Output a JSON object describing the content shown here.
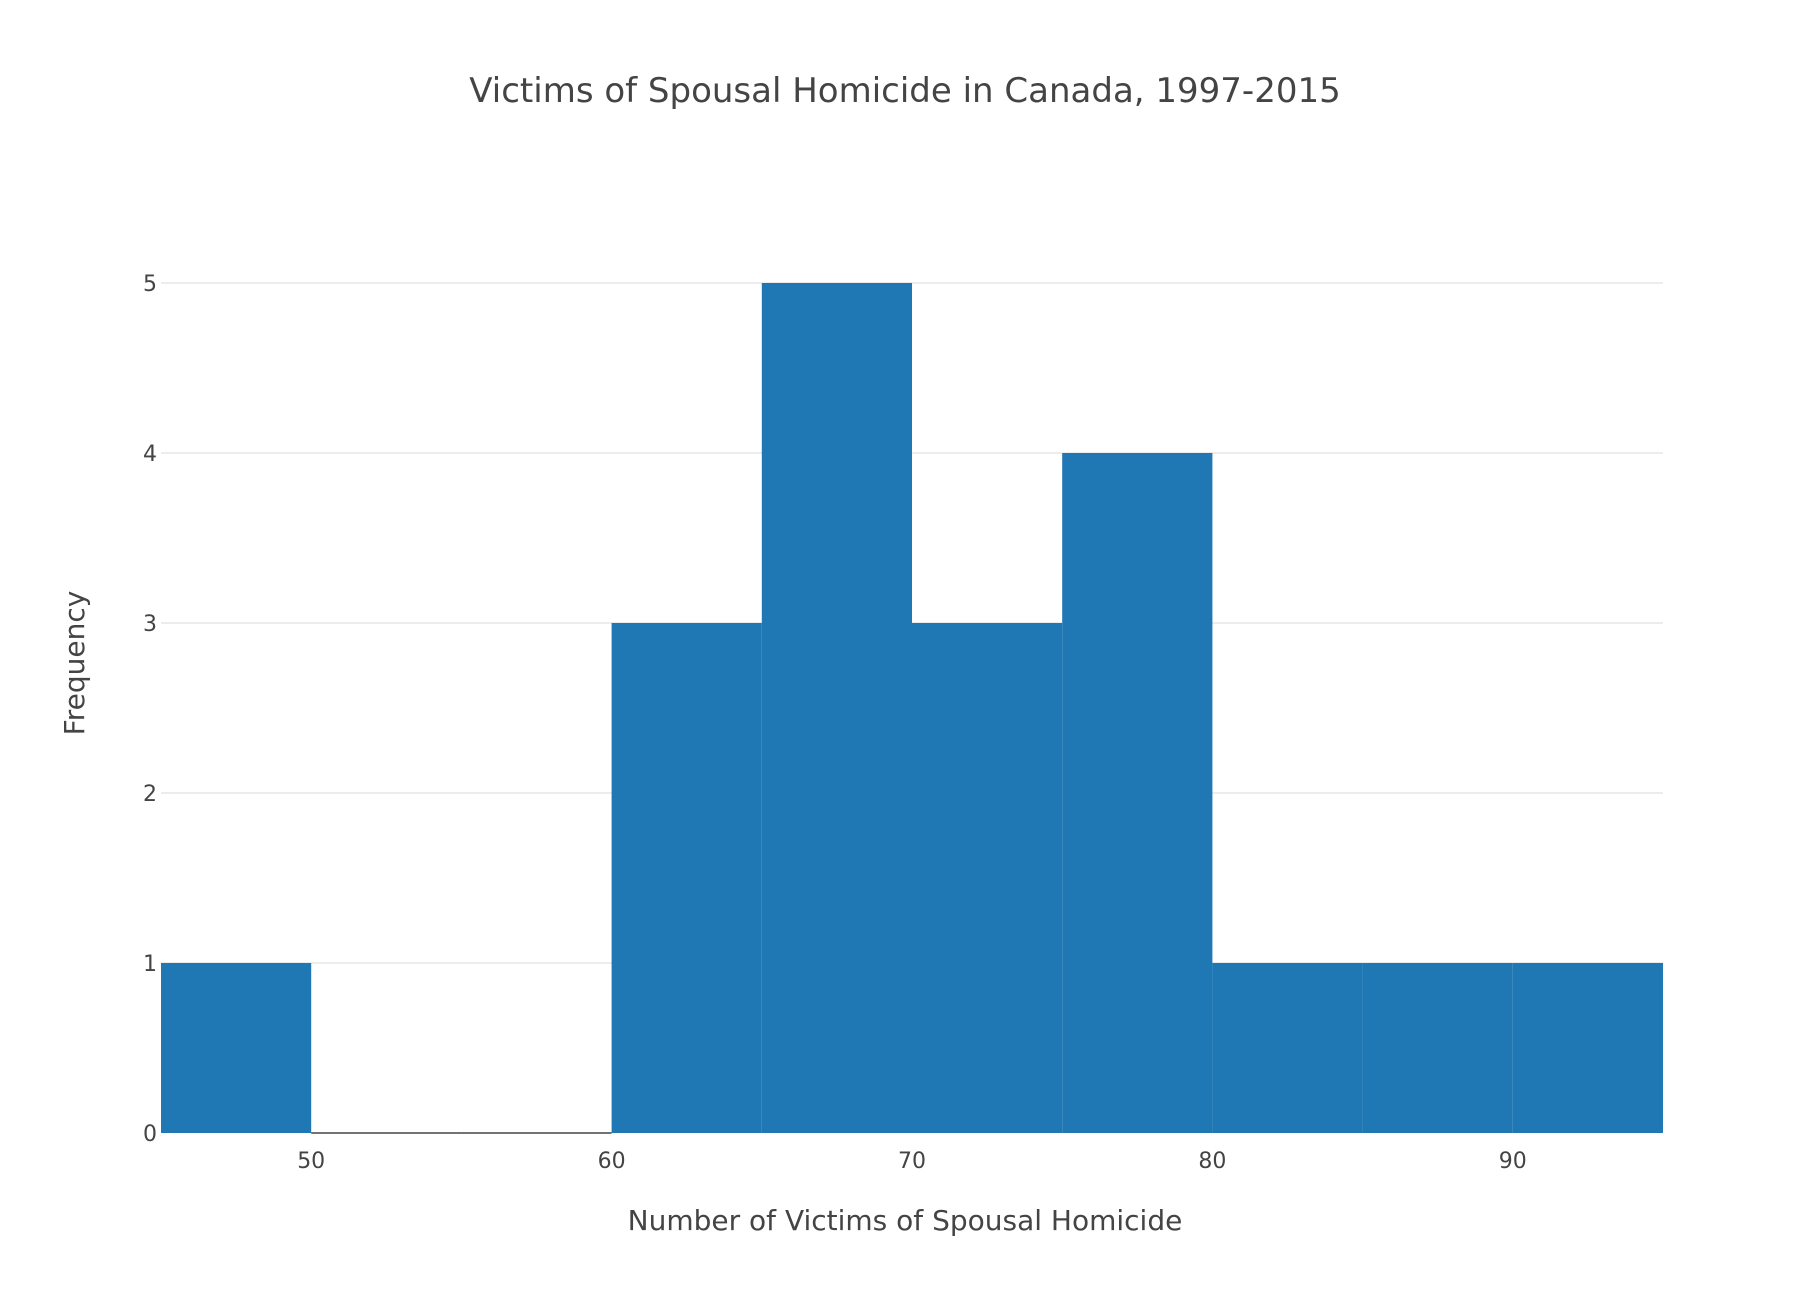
{
  "chart_data": {
    "type": "bar",
    "title": "Victims of Spousal Homicide in Canada, 1997-2015",
    "xlabel": "Number of Victims of Spousal Homicide",
    "ylabel": "Frequency",
    "bins": [
      {
        "start": 45,
        "end": 50,
        "count": 1
      },
      {
        "start": 50,
        "end": 55,
        "count": 0
      },
      {
        "start": 55,
        "end": 60,
        "count": 0
      },
      {
        "start": 60,
        "end": 65,
        "count": 3
      },
      {
        "start": 65,
        "end": 70,
        "count": 5
      },
      {
        "start": 70,
        "end": 75,
        "count": 3
      },
      {
        "start": 75,
        "end": 80,
        "count": 4
      },
      {
        "start": 80,
        "end": 85,
        "count": 1
      },
      {
        "start": 85,
        "end": 90,
        "count": 1
      },
      {
        "start": 90,
        "end": 95,
        "count": 1
      }
    ],
    "xlim": [
      45,
      95
    ],
    "ylim": [
      0,
      5.5
    ],
    "xticks": [
      50,
      60,
      70,
      80,
      90
    ],
    "yticks": [
      0,
      1,
      2,
      3,
      4,
      5
    ],
    "bar_color": "#1f77b4",
    "grid": true,
    "gridline_color": "#e6e6e6",
    "text_color": "#444444"
  }
}
